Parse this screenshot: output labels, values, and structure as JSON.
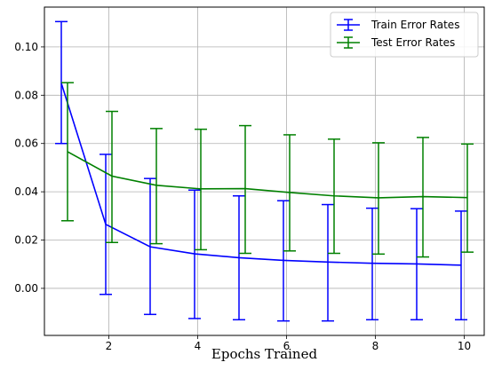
{
  "chart_data": {
    "type": "line",
    "xlabel": "Epochs Trained",
    "ylabel": "",
    "xlim": [
      0.55,
      10.45
    ],
    "ylim": [
      -0.0195,
      0.1165
    ],
    "xticks": [
      2,
      4,
      6,
      8,
      10
    ],
    "yticks": [
      0.0,
      0.02,
      0.04,
      0.06,
      0.08,
      0.1
    ],
    "xtick_labels": [
      "2",
      "4",
      "6",
      "8",
      "10"
    ],
    "ytick_labels": [
      "0.00",
      "0.02",
      "0.04",
      "0.06",
      "0.08",
      "0.10"
    ],
    "grid": true,
    "legend_position": "upper-right",
    "series": [
      {
        "name": "Train Error Rates",
        "color": "#0000ff",
        "x": [
          1,
          2,
          3,
          4,
          5,
          6,
          7,
          8,
          9,
          10
        ],
        "y": [
          0.085,
          0.0265,
          0.0172,
          0.0143,
          0.0127,
          0.0116,
          0.0109,
          0.0104,
          0.0101,
          0.0096
        ],
        "y_lower": [
          0.06,
          -0.0025,
          -0.0108,
          -0.0125,
          -0.013,
          -0.0135,
          -0.0135,
          -0.013,
          -0.013,
          -0.013
        ],
        "y_upper": [
          0.1105,
          0.0555,
          0.0455,
          0.0407,
          0.0383,
          0.0363,
          0.0347,
          0.0332,
          0.033,
          0.032
        ],
        "x_offset": -0.07
      },
      {
        "name": "Test Error Rates",
        "color": "#008000",
        "x": [
          1,
          2,
          3,
          4,
          5,
          6,
          7,
          8,
          9,
          10
        ],
        "y": [
          0.0566,
          0.0465,
          0.0427,
          0.0412,
          0.0413,
          0.0397,
          0.0383,
          0.0375,
          0.038,
          0.0376
        ],
        "y_lower": [
          0.028,
          0.019,
          0.0185,
          0.016,
          0.0145,
          0.0155,
          0.0145,
          0.0142,
          0.013,
          0.015
        ],
        "y_upper": [
          0.0852,
          0.0733,
          0.0662,
          0.0659,
          0.0674,
          0.0636,
          0.0618,
          0.0603,
          0.0625,
          0.0598
        ],
        "x_offset": 0.07
      }
    ]
  }
}
